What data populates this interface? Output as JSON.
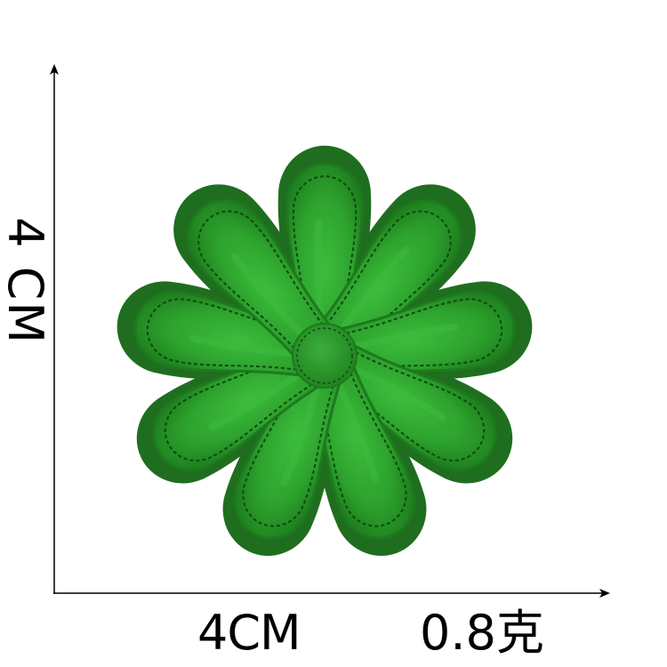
{
  "dimensions": {
    "width_label": "4CM",
    "height_label": "4 CM",
    "weight_label": "0.8克"
  },
  "patch": {
    "description_name": "green-flower-embroidered-patch",
    "petal_count": 9,
    "colors": {
      "felt_border": "#1f6e1f",
      "petal": "#2e9e2e",
      "petal_highlight": "#3dbb3d",
      "petal_shadow": "#1d7a1d",
      "stitch": "#0e4a0e",
      "center": "#279227"
    }
  },
  "axes": {
    "color": "#000000"
  }
}
